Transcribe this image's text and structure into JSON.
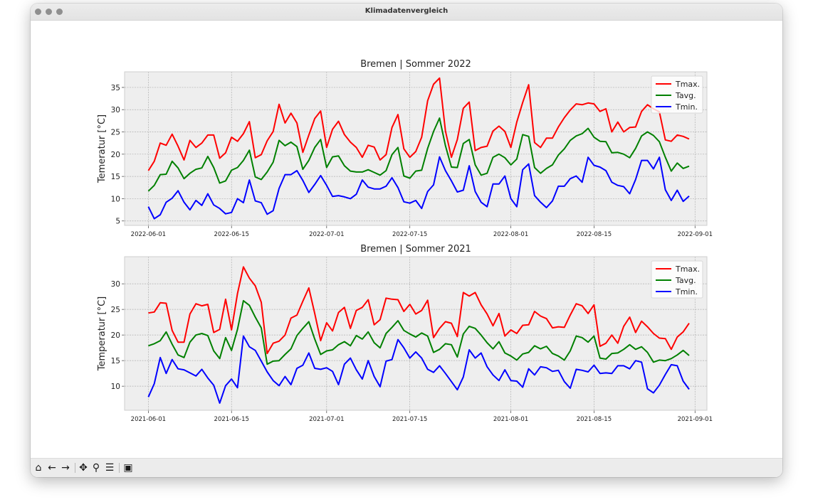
{
  "window": {
    "title": "Klimadatenvergleich"
  },
  "toolbar": {
    "buttons": [
      {
        "name": "home",
        "icon": "home-icon",
        "glyph": "⌂"
      },
      {
        "name": "back",
        "icon": "arrow-left-icon",
        "glyph": "←"
      },
      {
        "name": "forward",
        "icon": "arrow-right-icon",
        "glyph": "→"
      },
      {
        "name": "pan",
        "icon": "move-icon",
        "glyph": "✥"
      },
      {
        "name": "zoom",
        "icon": "magnifier-icon",
        "glyph": "⚲"
      },
      {
        "name": "configure",
        "icon": "sliders-icon",
        "glyph": "☰"
      },
      {
        "name": "save",
        "icon": "save-icon",
        "glyph": "▣"
      }
    ]
  },
  "colors": {
    "tmax": "#ff0000",
    "tavg": "#008000",
    "tmin": "#0000ff",
    "axes_bg": "#eeeeee",
    "grid": "#b0b0b0"
  },
  "chart_data": [
    {
      "type": "line",
      "title": "Bremen | Sommer 2022",
      "ylabel": "Temeratur [°C]",
      "xlabel": "",
      "x_start": "2022-06-01",
      "xlim": [
        "2022-05-28",
        "2022-09-03"
      ],
      "ylim": [
        4,
        38.5
      ],
      "yticks": [
        5,
        10,
        15,
        20,
        25,
        30,
        35
      ],
      "xticks": [
        "2022-06-01",
        "2022-06-15",
        "2022-07-01",
        "2022-07-15",
        "2022-08-01",
        "2022-08-15",
        "2022-09-01"
      ],
      "grid": true,
      "legend_position": "top-right",
      "series": [
        {
          "name": "Tmax.",
          "color": "#ff0000",
          "values": [
            16.3,
            18.4,
            22.5,
            22.0,
            24.5,
            21.8,
            18.7,
            23.1,
            21.5,
            22.5,
            24.3,
            24.3,
            19.1,
            20.3,
            23.8,
            22.9,
            24.6,
            27.3,
            19.2,
            19.9,
            23.0,
            25.1,
            31.2,
            27.0,
            29.2,
            27.0,
            20.4,
            24.3,
            28.0,
            29.7,
            21.5,
            25.6,
            27.4,
            24.4,
            22.7,
            21.5,
            19.3,
            22.0,
            21.6,
            18.7,
            19.9,
            26.0,
            28.9,
            21.2,
            19.3,
            20.6,
            23.8,
            32.0,
            35.7,
            37.1,
            25.2,
            19.3,
            23.3,
            30.3,
            31.7,
            20.8,
            21.5,
            21.8,
            25.2,
            26.3,
            25.1,
            21.5,
            27.2,
            31.6,
            35.6,
            22.6,
            21.5,
            23.6,
            23.6,
            26.1,
            28.2,
            29.9,
            31.3,
            31.1,
            31.5,
            31.3,
            29.6,
            30.2,
            25.0,
            27.2,
            25.0,
            26.0,
            26.1,
            29.6,
            31.1,
            30.2,
            29.5,
            23.2,
            22.9,
            24.3,
            24.0,
            23.4
          ]
        },
        {
          "name": "Tavg.",
          "color": "#008000",
          "values": [
            11.7,
            13.0,
            15.4,
            15.5,
            18.4,
            16.9,
            14.5,
            15.7,
            16.6,
            16.9,
            19.5,
            17.0,
            13.5,
            14.0,
            16.4,
            17.0,
            18.6,
            20.9,
            14.9,
            14.3,
            16.0,
            18.2,
            23.1,
            21.9,
            22.7,
            21.7,
            16.6,
            18.6,
            21.5,
            23.3,
            17.0,
            19.4,
            19.6,
            17.4,
            16.2,
            16.0,
            16.0,
            16.5,
            15.9,
            15.3,
            16.3,
            19.9,
            21.5,
            15.1,
            14.6,
            16.2,
            16.4,
            21.3,
            25.1,
            28.1,
            21.9,
            17.1,
            17.0,
            22.4,
            23.3,
            17.6,
            15.3,
            15.7,
            19.3,
            20.0,
            19.2,
            17.6,
            18.9,
            24.4,
            24.0,
            17.0,
            15.7,
            16.8,
            17.6,
            19.8,
            21.2,
            23.1,
            24.1,
            24.6,
            25.8,
            23.8,
            22.9,
            22.8,
            20.3,
            20.4,
            20.0,
            19.2,
            21.3,
            24.1,
            25.0,
            24.2,
            22.8,
            19.3,
            16.2,
            18.0,
            16.8,
            17.3
          ]
        },
        {
          "name": "Tmin.",
          "color": "#0000ff",
          "values": [
            8.2,
            5.5,
            6.4,
            9.2,
            10.1,
            11.8,
            9.2,
            7.5,
            9.6,
            8.5,
            11.1,
            8.6,
            7.8,
            6.6,
            6.9,
            10.0,
            9.1,
            14.2,
            9.5,
            9.1,
            6.5,
            7.3,
            12.3,
            15.4,
            15.4,
            16.3,
            14.1,
            11.4,
            13.2,
            15.2,
            13.0,
            10.5,
            10.7,
            10.4,
            10.0,
            11.0,
            14.2,
            12.6,
            12.2,
            12.2,
            12.8,
            14.7,
            12.5,
            9.3,
            9.0,
            9.6,
            7.8,
            11.6,
            13.1,
            19.4,
            16.3,
            14.0,
            11.5,
            11.9,
            17.4,
            11.6,
            9.2,
            8.2,
            13.3,
            13.3,
            15.1,
            10.0,
            8.2,
            16.5,
            17.8,
            10.7,
            9.2,
            8.0,
            9.5,
            12.8,
            12.8,
            14.5,
            15.1,
            13.7,
            19.3,
            17.5,
            17.1,
            16.3,
            13.7,
            13.0,
            12.7,
            11.1,
            14.3,
            18.6,
            18.6,
            16.7,
            19.3,
            12.0,
            9.6,
            11.9,
            9.4,
            10.6
          ]
        }
      ]
    },
    {
      "type": "line",
      "title": "Bremen | Sommer 2021",
      "ylabel": "Temperatur [°C]",
      "xlabel": "",
      "x_start": "2021-06-01",
      "xlim": [
        "2021-05-28",
        "2021-09-03"
      ],
      "ylim": [
        5.3,
        35.3
      ],
      "yticks": [
        10,
        15,
        20,
        25,
        30
      ],
      "xticks": [
        "2021-06-01",
        "2021-06-15",
        "2021-07-01",
        "2021-07-15",
        "2021-08-01",
        "2021-08-15",
        "2021-09-01"
      ],
      "grid": true,
      "legend_position": "top-right",
      "series": [
        {
          "name": "Tmax.",
          "color": "#ff0000",
          "values": [
            24.3,
            24.5,
            26.3,
            26.2,
            20.9,
            18.6,
            18.6,
            24.1,
            26.1,
            25.7,
            26.0,
            20.5,
            21.1,
            27.0,
            21.0,
            28.1,
            33.3,
            31.1,
            29.6,
            26.4,
            16.4,
            18.4,
            18.8,
            20.0,
            23.3,
            23.9,
            26.6,
            29.2,
            24.2,
            18.9,
            22.4,
            20.8,
            24.4,
            25.4,
            21.3,
            24.8,
            25.4,
            26.9,
            22.0,
            23.0,
            27.2,
            27.0,
            26.9,
            24.6,
            26.0,
            24.1,
            24.8,
            26.8,
            19.5,
            21.3,
            22.6,
            22.3,
            19.7,
            28.3,
            27.6,
            28.3,
            25.9,
            24.1,
            21.8,
            24.2,
            19.8,
            21.0,
            20.3,
            21.9,
            22.0,
            24.6,
            23.7,
            23.2,
            21.4,
            21.6,
            21.5,
            23.9,
            26.1,
            25.7,
            24.2,
            25.9,
            17.8,
            18.4,
            20.0,
            18.4,
            21.7,
            23.5,
            20.5,
            22.7,
            21.6,
            20.3,
            19.4,
            19.3,
            17.2,
            19.6,
            20.6,
            22.3
          ]
        },
        {
          "name": "Tavg.",
          "color": "#008000",
          "values": [
            17.9,
            18.3,
            18.9,
            20.6,
            18.2,
            16.1,
            15.6,
            18.6,
            20.0,
            20.3,
            19.9,
            16.9,
            15.4,
            19.5,
            17.0,
            21.1,
            26.7,
            25.8,
            23.5,
            21.4,
            14.3,
            14.9,
            15.0,
            16.2,
            17.3,
            19.9,
            21.3,
            22.6,
            19.2,
            16.2,
            16.9,
            17.1,
            18.1,
            18.7,
            17.9,
            19.9,
            19.2,
            20.6,
            18.5,
            17.5,
            20.3,
            21.5,
            22.8,
            20.9,
            20.2,
            19.6,
            20.4,
            19.8,
            16.6,
            17.2,
            18.3,
            18.1,
            15.7,
            20.2,
            21.7,
            21.3,
            20.0,
            18.5,
            17.3,
            18.7,
            16.5,
            15.9,
            15.1,
            16.3,
            16.6,
            17.9,
            17.3,
            17.8,
            16.4,
            15.9,
            15.1,
            16.9,
            19.8,
            19.5,
            18.6,
            19.8,
            15.5,
            15.3,
            16.4,
            16.5,
            17.2,
            18.1,
            17.2,
            17.7,
            16.6,
            14.7,
            15.1,
            15.0,
            15.4,
            16.1,
            17.0,
            16.0
          ]
        },
        {
          "name": "Tmin.",
          "color": "#0000ff",
          "values": [
            7.9,
            10.5,
            15.6,
            12.5,
            15.2,
            13.4,
            13.2,
            12.6,
            12.0,
            13.3,
            11.6,
            10.2,
            6.7,
            10.1,
            11.4,
            9.7,
            19.8,
            17.7,
            17.0,
            14.9,
            12.8,
            11.1,
            10.1,
            11.9,
            10.3,
            13.5,
            14.1,
            16.5,
            13.5,
            13.3,
            13.6,
            12.9,
            10.3,
            14.3,
            15.5,
            13.2,
            11.4,
            15.0,
            11.9,
            9.9,
            14.9,
            15.2,
            19.1,
            17.5,
            15.5,
            16.7,
            15.5,
            13.3,
            12.7,
            14.0,
            12.5,
            10.9,
            9.3,
            11.8,
            17.1,
            15.5,
            16.5,
            13.8,
            12.2,
            11.1,
            13.2,
            11.1,
            11.0,
            9.8,
            13.4,
            12.2,
            13.8,
            13.6,
            12.9,
            13.1,
            10.9,
            9.6,
            13.3,
            13.1,
            12.8,
            14.1,
            12.5,
            12.6,
            12.5,
            14.0,
            14.0,
            13.4,
            15.0,
            14.7,
            9.5,
            8.7,
            10.2,
            12.3,
            14.2,
            14.0,
            11.0,
            9.4
          ]
        }
      ]
    }
  ]
}
